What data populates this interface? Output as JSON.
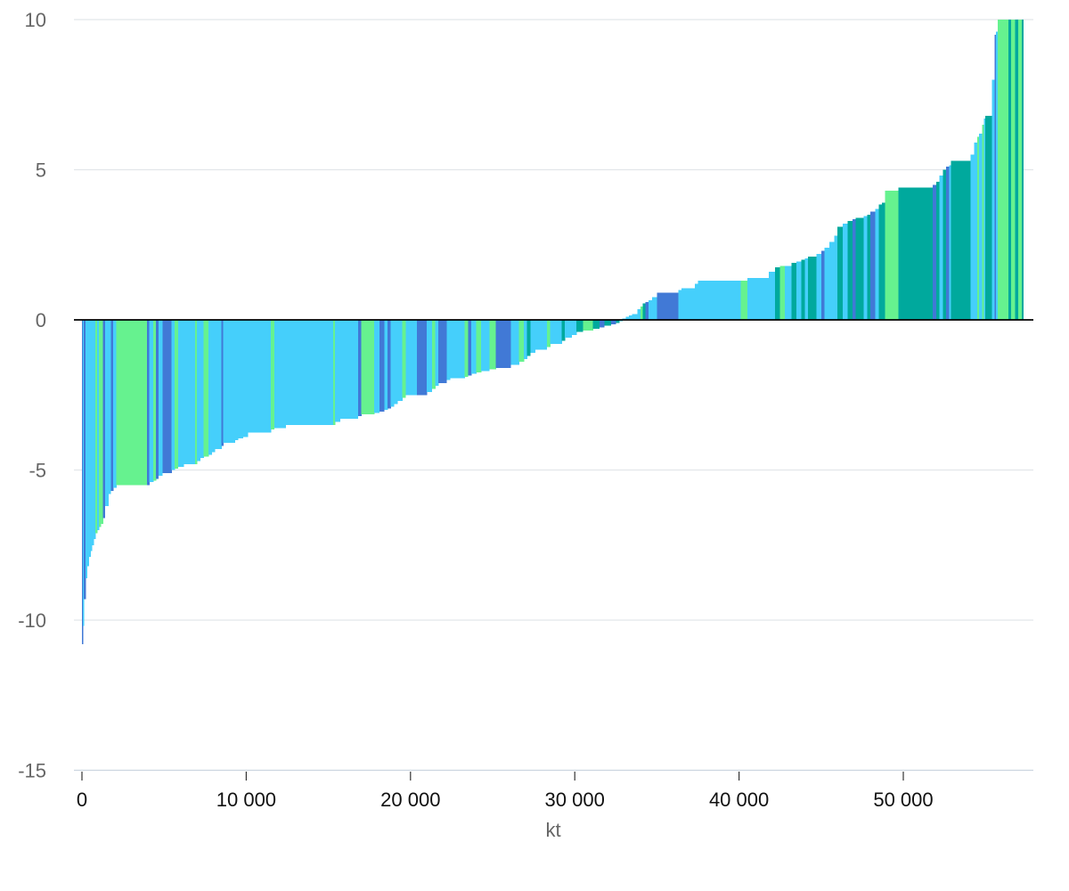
{
  "chart_data": {
    "type": "bar",
    "subtype": "variable-width waterfall (sorted marginal abatement style)",
    "xlabel": "kt",
    "ylabel": "",
    "xlim": [
      0,
      57500
    ],
    "ylim": [
      -15,
      10
    ],
    "x_ticks": [
      {
        "value": 0,
        "label": "0"
      },
      {
        "value": 10000,
        "label": "10 000"
      },
      {
        "value": 20000,
        "label": "20 000"
      },
      {
        "value": 30000,
        "label": "30 000"
      },
      {
        "value": 40000,
        "label": "40 000"
      },
      {
        "value": 50000,
        "label": "50 000"
      }
    ],
    "y_ticks": [
      {
        "value": 10,
        "label": "10"
      },
      {
        "value": 5,
        "label": "5"
      },
      {
        "value": 0,
        "label": "0"
      },
      {
        "value": -5,
        "label": "-5"
      },
      {
        "value": -10,
        "label": "-10"
      },
      {
        "value": -15,
        "label": "-15"
      }
    ],
    "grid": true,
    "colors": {
      "light_blue": "#45cffb",
      "blue": "#4179d6",
      "light_green": "#66f28f",
      "teal": "#00a99d",
      "grid": "#e2e6ea",
      "zero_line": "#000000"
    },
    "bars": [
      {
        "x0": 0,
        "x1": 60,
        "y": -10.8,
        "color": "blue"
      },
      {
        "x0": 60,
        "x1": 120,
        "y": -10.2,
        "color": "light_blue"
      },
      {
        "x0": 120,
        "x1": 220,
        "y": -9.3,
        "color": "blue"
      },
      {
        "x0": 220,
        "x1": 320,
        "y": -8.6,
        "color": "light_blue"
      },
      {
        "x0": 320,
        "x1": 420,
        "y": -8.2,
        "color": "light_blue"
      },
      {
        "x0": 420,
        "x1": 520,
        "y": -7.9,
        "color": "light_blue"
      },
      {
        "x0": 520,
        "x1": 620,
        "y": -7.7,
        "color": "light_blue"
      },
      {
        "x0": 620,
        "x1": 720,
        "y": -7.5,
        "color": "light_blue"
      },
      {
        "x0": 720,
        "x1": 820,
        "y": -7.3,
        "color": "light_blue"
      },
      {
        "x0": 820,
        "x1": 920,
        "y": -7.1,
        "color": "light_green"
      },
      {
        "x0": 920,
        "x1": 1040,
        "y": -7.0,
        "color": "light_blue"
      },
      {
        "x0": 1040,
        "x1": 1160,
        "y": -6.9,
        "color": "light_green"
      },
      {
        "x0": 1160,
        "x1": 1280,
        "y": -6.8,
        "color": "light_green"
      },
      {
        "x0": 1280,
        "x1": 1400,
        "y": -6.6,
        "color": "blue"
      },
      {
        "x0": 1400,
        "x1": 1600,
        "y": -6.2,
        "color": "light_blue"
      },
      {
        "x0": 1600,
        "x1": 1750,
        "y": -5.8,
        "color": "light_blue"
      },
      {
        "x0": 1750,
        "x1": 1900,
        "y": -5.7,
        "color": "blue"
      },
      {
        "x0": 1900,
        "x1": 2100,
        "y": -5.6,
        "color": "light_blue"
      },
      {
        "x0": 2100,
        "x1": 3950,
        "y": -5.5,
        "color": "light_green"
      },
      {
        "x0": 3950,
        "x1": 4100,
        "y": -5.5,
        "color": "blue"
      },
      {
        "x0": 4100,
        "x1": 4350,
        "y": -5.4,
        "color": "light_blue"
      },
      {
        "x0": 4350,
        "x1": 4500,
        "y": -5.35,
        "color": "light_green"
      },
      {
        "x0": 4500,
        "x1": 4650,
        "y": -5.3,
        "color": "blue"
      },
      {
        "x0": 4650,
        "x1": 4900,
        "y": -5.2,
        "color": "light_blue"
      },
      {
        "x0": 4900,
        "x1": 5450,
        "y": -5.1,
        "color": "blue"
      },
      {
        "x0": 5450,
        "x1": 5650,
        "y": -5.0,
        "color": "light_blue"
      },
      {
        "x0": 5650,
        "x1": 5850,
        "y": -4.95,
        "color": "light_green"
      },
      {
        "x0": 5850,
        "x1": 6200,
        "y": -4.9,
        "color": "light_blue"
      },
      {
        "x0": 6200,
        "x1": 6900,
        "y": -4.8,
        "color": "light_blue"
      },
      {
        "x0": 6900,
        "x1": 7000,
        "y": -4.8,
        "color": "light_green"
      },
      {
        "x0": 7000,
        "x1": 7200,
        "y": -4.7,
        "color": "light_blue"
      },
      {
        "x0": 7200,
        "x1": 7400,
        "y": -4.6,
        "color": "light_blue"
      },
      {
        "x0": 7400,
        "x1": 7700,
        "y": -4.55,
        "color": "light_green"
      },
      {
        "x0": 7700,
        "x1": 7900,
        "y": -4.5,
        "color": "light_blue"
      },
      {
        "x0": 7900,
        "x1": 8100,
        "y": -4.4,
        "color": "light_blue"
      },
      {
        "x0": 8100,
        "x1": 8500,
        "y": -4.3,
        "color": "light_blue"
      },
      {
        "x0": 8500,
        "x1": 8600,
        "y": -4.2,
        "color": "blue"
      },
      {
        "x0": 8600,
        "x1": 8900,
        "y": -4.1,
        "color": "light_blue"
      },
      {
        "x0": 8900,
        "x1": 9300,
        "y": -4.1,
        "color": "light_blue"
      },
      {
        "x0": 9300,
        "x1": 9500,
        "y": -4.0,
        "color": "light_blue"
      },
      {
        "x0": 9500,
        "x1": 9800,
        "y": -3.95,
        "color": "light_blue"
      },
      {
        "x0": 9800,
        "x1": 10100,
        "y": -3.9,
        "color": "light_blue"
      },
      {
        "x0": 10100,
        "x1": 11500,
        "y": -3.75,
        "color": "light_blue"
      },
      {
        "x0": 11500,
        "x1": 11700,
        "y": -3.65,
        "color": "light_green"
      },
      {
        "x0": 11700,
        "x1": 12400,
        "y": -3.6,
        "color": "light_blue"
      },
      {
        "x0": 12400,
        "x1": 15300,
        "y": -3.5,
        "color": "light_blue"
      },
      {
        "x0": 15300,
        "x1": 15400,
        "y": -3.5,
        "color": "light_green"
      },
      {
        "x0": 15400,
        "x1": 15700,
        "y": -3.4,
        "color": "light_blue"
      },
      {
        "x0": 15700,
        "x1": 16800,
        "y": -3.3,
        "color": "light_blue"
      },
      {
        "x0": 16800,
        "x1": 17000,
        "y": -3.2,
        "color": "blue"
      },
      {
        "x0": 17000,
        "x1": 17800,
        "y": -3.15,
        "color": "light_green"
      },
      {
        "x0": 17800,
        "x1": 18100,
        "y": -3.1,
        "color": "light_blue"
      },
      {
        "x0": 18100,
        "x1": 18400,
        "y": -3.05,
        "color": "blue"
      },
      {
        "x0": 18400,
        "x1": 18600,
        "y": -3.0,
        "color": "light_blue"
      },
      {
        "x0": 18600,
        "x1": 18800,
        "y": -2.95,
        "color": "blue"
      },
      {
        "x0": 18800,
        "x1": 19000,
        "y": -2.9,
        "color": "light_blue"
      },
      {
        "x0": 19000,
        "x1": 19200,
        "y": -2.8,
        "color": "light_blue"
      },
      {
        "x0": 19200,
        "x1": 19500,
        "y": -2.7,
        "color": "light_blue"
      },
      {
        "x0": 19500,
        "x1": 19700,
        "y": -2.6,
        "color": "light_green"
      },
      {
        "x0": 19700,
        "x1": 20400,
        "y": -2.5,
        "color": "light_blue"
      },
      {
        "x0": 20400,
        "x1": 21000,
        "y": -2.5,
        "color": "blue"
      },
      {
        "x0": 21000,
        "x1": 21300,
        "y": -2.4,
        "color": "light_blue"
      },
      {
        "x0": 21300,
        "x1": 21500,
        "y": -2.3,
        "color": "light_green"
      },
      {
        "x0": 21500,
        "x1": 21700,
        "y": -2.2,
        "color": "light_blue"
      },
      {
        "x0": 21700,
        "x1": 22200,
        "y": -2.1,
        "color": "blue"
      },
      {
        "x0": 22200,
        "x1": 22400,
        "y": -2.0,
        "color": "light_blue"
      },
      {
        "x0": 22400,
        "x1": 23300,
        "y": -1.95,
        "color": "light_blue"
      },
      {
        "x0": 23300,
        "x1": 23500,
        "y": -1.9,
        "color": "light_green"
      },
      {
        "x0": 23500,
        "x1": 23700,
        "y": -1.85,
        "color": "blue"
      },
      {
        "x0": 23700,
        "x1": 24000,
        "y": -1.8,
        "color": "light_blue"
      },
      {
        "x0": 24000,
        "x1": 24300,
        "y": -1.75,
        "color": "light_green"
      },
      {
        "x0": 24300,
        "x1": 24800,
        "y": -1.7,
        "color": "light_blue"
      },
      {
        "x0": 24800,
        "x1": 25200,
        "y": -1.65,
        "color": "light_green"
      },
      {
        "x0": 25200,
        "x1": 26100,
        "y": -1.6,
        "color": "blue"
      },
      {
        "x0": 26100,
        "x1": 26600,
        "y": -1.5,
        "color": "light_blue"
      },
      {
        "x0": 26600,
        "x1": 26900,
        "y": -1.4,
        "color": "light_green"
      },
      {
        "x0": 26900,
        "x1": 27100,
        "y": -1.3,
        "color": "light_blue"
      },
      {
        "x0": 27100,
        "x1": 27300,
        "y": -1.2,
        "color": "teal"
      },
      {
        "x0": 27300,
        "x1": 27600,
        "y": -1.1,
        "color": "light_blue"
      },
      {
        "x0": 27600,
        "x1": 28300,
        "y": -1.0,
        "color": "light_blue"
      },
      {
        "x0": 28300,
        "x1": 28500,
        "y": -0.9,
        "color": "light_green"
      },
      {
        "x0": 28500,
        "x1": 29200,
        "y": -0.8,
        "color": "light_blue"
      },
      {
        "x0": 29200,
        "x1": 29400,
        "y": -0.7,
        "color": "teal"
      },
      {
        "x0": 29400,
        "x1": 29800,
        "y": -0.6,
        "color": "light_blue"
      },
      {
        "x0": 29800,
        "x1": 30100,
        "y": -0.5,
        "color": "light_blue"
      },
      {
        "x0": 30100,
        "x1": 30500,
        "y": -0.4,
        "color": "teal"
      },
      {
        "x0": 30500,
        "x1": 31100,
        "y": -0.35,
        "color": "light_green"
      },
      {
        "x0": 31100,
        "x1": 31500,
        "y": -0.3,
        "color": "teal"
      },
      {
        "x0": 31500,
        "x1": 31800,
        "y": -0.25,
        "color": "blue"
      },
      {
        "x0": 31800,
        "x1": 32200,
        "y": -0.2,
        "color": "teal"
      },
      {
        "x0": 32200,
        "x1": 32500,
        "y": -0.15,
        "color": "blue"
      },
      {
        "x0": 32500,
        "x1": 32700,
        "y": -0.1,
        "color": "teal"
      },
      {
        "x0": 32700,
        "x1": 32900,
        "y": -0.05,
        "color": "light_blue"
      },
      {
        "x0": 32900,
        "x1": 33100,
        "y": 0.05,
        "color": "light_blue"
      },
      {
        "x0": 33100,
        "x1": 33300,
        "y": 0.1,
        "color": "light_blue"
      },
      {
        "x0": 33300,
        "x1": 33500,
        "y": 0.15,
        "color": "light_blue"
      },
      {
        "x0": 33500,
        "x1": 33800,
        "y": 0.2,
        "color": "light_blue"
      },
      {
        "x0": 33800,
        "x1": 34000,
        "y": 0.35,
        "color": "light_blue"
      },
      {
        "x0": 34000,
        "x1": 34150,
        "y": 0.45,
        "color": "light_green"
      },
      {
        "x0": 34150,
        "x1": 34300,
        "y": 0.55,
        "color": "teal"
      },
      {
        "x0": 34300,
        "x1": 34500,
        "y": 0.6,
        "color": "blue"
      },
      {
        "x0": 34500,
        "x1": 34700,
        "y": 0.65,
        "color": "light_blue"
      },
      {
        "x0": 34700,
        "x1": 35000,
        "y": 0.75,
        "color": "light_blue"
      },
      {
        "x0": 35000,
        "x1": 36300,
        "y": 0.9,
        "color": "blue"
      },
      {
        "x0": 36300,
        "x1": 36500,
        "y": 1.0,
        "color": "light_blue"
      },
      {
        "x0": 36500,
        "x1": 37300,
        "y": 1.05,
        "color": "light_blue"
      },
      {
        "x0": 37300,
        "x1": 37500,
        "y": 1.2,
        "color": "light_blue"
      },
      {
        "x0": 37500,
        "x1": 40100,
        "y": 1.3,
        "color": "light_blue"
      },
      {
        "x0": 40100,
        "x1": 40500,
        "y": 1.3,
        "color": "light_green"
      },
      {
        "x0": 40500,
        "x1": 41800,
        "y": 1.4,
        "color": "light_blue"
      },
      {
        "x0": 41800,
        "x1": 42200,
        "y": 1.6,
        "color": "light_blue"
      },
      {
        "x0": 42200,
        "x1": 42500,
        "y": 1.75,
        "color": "teal"
      },
      {
        "x0": 42500,
        "x1": 42800,
        "y": 1.8,
        "color": "light_green"
      },
      {
        "x0": 42800,
        "x1": 43200,
        "y": 1.8,
        "color": "light_blue"
      },
      {
        "x0": 43200,
        "x1": 43500,
        "y": 1.9,
        "color": "teal"
      },
      {
        "x0": 43500,
        "x1": 43800,
        "y": 1.95,
        "color": "light_blue"
      },
      {
        "x0": 43800,
        "x1": 44000,
        "y": 2.0,
        "color": "teal"
      },
      {
        "x0": 44000,
        "x1": 44200,
        "y": 2.05,
        "color": "light_blue"
      },
      {
        "x0": 44200,
        "x1": 44700,
        "y": 2.1,
        "color": "teal"
      },
      {
        "x0": 44700,
        "x1": 45000,
        "y": 2.2,
        "color": "light_blue"
      },
      {
        "x0": 45000,
        "x1": 45200,
        "y": 2.3,
        "color": "blue"
      },
      {
        "x0": 45200,
        "x1": 45500,
        "y": 2.4,
        "color": "light_blue"
      },
      {
        "x0": 45500,
        "x1": 45800,
        "y": 2.6,
        "color": "light_blue"
      },
      {
        "x0": 45800,
        "x1": 46000,
        "y": 2.8,
        "color": "light_blue"
      },
      {
        "x0": 46000,
        "x1": 46300,
        "y": 3.1,
        "color": "teal"
      },
      {
        "x0": 46300,
        "x1": 46600,
        "y": 3.2,
        "color": "light_blue"
      },
      {
        "x0": 46600,
        "x1": 46900,
        "y": 3.3,
        "color": "teal"
      },
      {
        "x0": 46900,
        "x1": 47100,
        "y": 3.35,
        "color": "blue"
      },
      {
        "x0": 47100,
        "x1": 47600,
        "y": 3.4,
        "color": "teal"
      },
      {
        "x0": 47600,
        "x1": 47800,
        "y": 3.45,
        "color": "light_blue"
      },
      {
        "x0": 47800,
        "x1": 48000,
        "y": 3.5,
        "color": "teal"
      },
      {
        "x0": 48000,
        "x1": 48300,
        "y": 3.6,
        "color": "blue"
      },
      {
        "x0": 48300,
        "x1": 48500,
        "y": 3.7,
        "color": "light_blue"
      },
      {
        "x0": 48500,
        "x1": 48700,
        "y": 3.85,
        "color": "teal"
      },
      {
        "x0": 48700,
        "x1": 48900,
        "y": 3.9,
        "color": "teal"
      },
      {
        "x0": 48900,
        "x1": 49700,
        "y": 4.3,
        "color": "light_green"
      },
      {
        "x0": 49700,
        "x1": 51800,
        "y": 4.4,
        "color": "teal"
      },
      {
        "x0": 51800,
        "x1": 52000,
        "y": 4.5,
        "color": "blue"
      },
      {
        "x0": 52000,
        "x1": 52200,
        "y": 4.6,
        "color": "teal"
      },
      {
        "x0": 52200,
        "x1": 52400,
        "y": 4.8,
        "color": "light_blue"
      },
      {
        "x0": 52400,
        "x1": 52600,
        "y": 5.0,
        "color": "teal"
      },
      {
        "x0": 52600,
        "x1": 52800,
        "y": 5.1,
        "color": "blue"
      },
      {
        "x0": 52800,
        "x1": 52900,
        "y": 5.15,
        "color": "light_blue"
      },
      {
        "x0": 52900,
        "x1": 54100,
        "y": 5.3,
        "color": "teal"
      },
      {
        "x0": 54100,
        "x1": 54300,
        "y": 5.5,
        "color": "light_blue"
      },
      {
        "x0": 54300,
        "x1": 54500,
        "y": 5.9,
        "color": "light_blue"
      },
      {
        "x0": 54500,
        "x1": 54600,
        "y": 6.1,
        "color": "light_green"
      },
      {
        "x0": 54600,
        "x1": 54800,
        "y": 6.2,
        "color": "light_blue"
      },
      {
        "x0": 54800,
        "x1": 54900,
        "y": 6.5,
        "color": "light_green"
      },
      {
        "x0": 54900,
        "x1": 55000,
        "y": 6.7,
        "color": "light_blue"
      },
      {
        "x0": 55000,
        "x1": 55400,
        "y": 6.8,
        "color": "teal"
      },
      {
        "x0": 55400,
        "x1": 55550,
        "y": 8.0,
        "color": "light_blue"
      },
      {
        "x0": 55550,
        "x1": 55650,
        "y": 9.5,
        "color": "blue"
      },
      {
        "x0": 55650,
        "x1": 55750,
        "y": 9.6,
        "color": "light_blue"
      },
      {
        "x0": 55750,
        "x1": 56400,
        "y": 10.0,
        "color": "light_green"
      },
      {
        "x0": 56400,
        "x1": 56550,
        "y": 10.0,
        "color": "teal"
      },
      {
        "x0": 56550,
        "x1": 56800,
        "y": 10.0,
        "color": "light_green"
      },
      {
        "x0": 56800,
        "x1": 57000,
        "y": 10.0,
        "color": "teal"
      },
      {
        "x0": 57000,
        "x1": 57200,
        "y": 10.0,
        "color": "light_green"
      },
      {
        "x0": 57200,
        "x1": 57300,
        "y": 10.0,
        "color": "teal"
      }
    ]
  }
}
